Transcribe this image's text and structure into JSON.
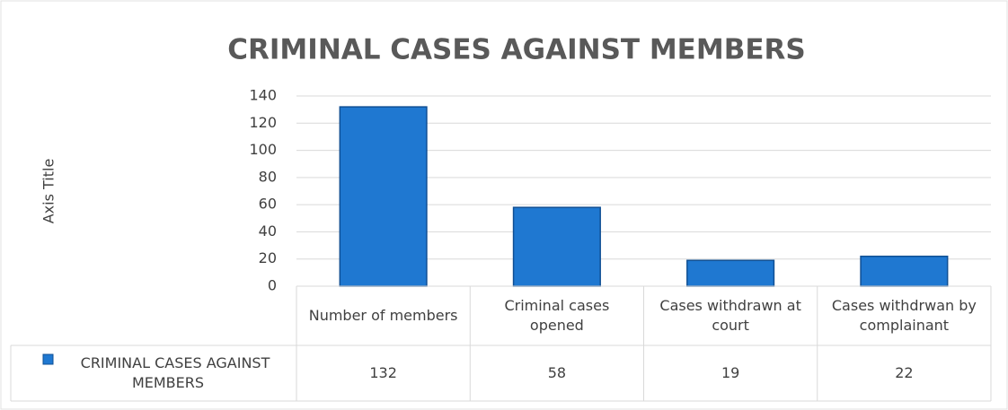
{
  "chart_data": {
    "type": "bar",
    "title": "CRIMINAL CASES AGAINST MEMBERS",
    "y_axis_label": "Axis Title",
    "categories": [
      "Number of members",
      "Criminal cases opened",
      "Cases withdrawn at court",
      "Cases withdrwan by complainant"
    ],
    "series": [
      {
        "name": "CRIMINAL CASES AGAINST MEMBERS",
        "color": "#1f78d1",
        "values": [
          132,
          58,
          19,
          22
        ]
      }
    ],
    "ylim": [
      0,
      140
    ],
    "yticks": [
      0,
      20,
      40,
      60,
      80,
      100,
      120,
      140
    ],
    "grid": true,
    "data_table": true
  }
}
